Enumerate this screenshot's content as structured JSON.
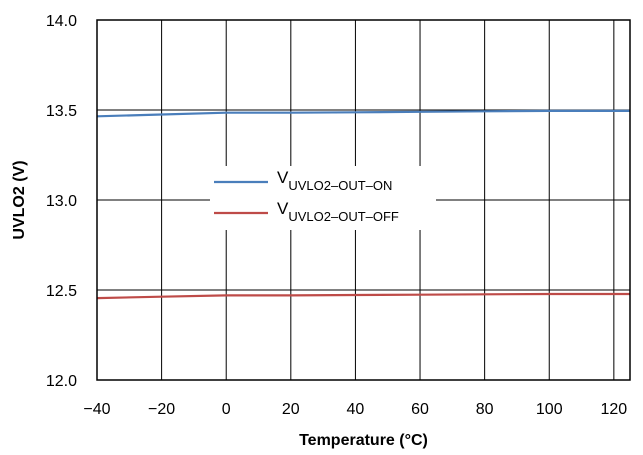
{
  "chart_data": {
    "type": "line",
    "title": "",
    "xlabel": "Temperature (°C)",
    "ylabel": "UVLO2 (V)",
    "xlim": [
      -40,
      125
    ],
    "ylim": [
      12.0,
      14.0
    ],
    "x_ticks": [
      -40,
      -20,
      0,
      20,
      40,
      60,
      80,
      100,
      120
    ],
    "y_ticks": [
      12.0,
      12.5,
      13.0,
      13.5,
      14.0
    ],
    "x_tick_labels": [
      "−40",
      "−20",
      "0",
      "20",
      "40",
      "60",
      "80",
      "100",
      "120"
    ],
    "y_tick_labels": [
      "12.0",
      "12.5",
      "13.0",
      "13.5",
      "14.0"
    ],
    "grid": true,
    "legend_position": "center-left",
    "series": [
      {
        "name_main": "V",
        "name_sub": "UVLO2–OUT–ON",
        "color": "#4a7ebb",
        "x": [
          -40,
          -20,
          0,
          20,
          40,
          60,
          80,
          100,
          125
        ],
        "y": [
          13.465,
          13.475,
          13.485,
          13.485,
          13.487,
          13.49,
          13.493,
          13.495,
          13.495
        ]
      },
      {
        "name_main": "V",
        "name_sub": "UVLO2–OUT–OFF",
        "color": "#be4b48",
        "x": [
          -40,
          -20,
          0,
          20,
          40,
          60,
          80,
          100,
          125
        ],
        "y": [
          12.455,
          12.463,
          12.47,
          12.47,
          12.472,
          12.474,
          12.476,
          12.478,
          12.478
        ]
      }
    ]
  }
}
